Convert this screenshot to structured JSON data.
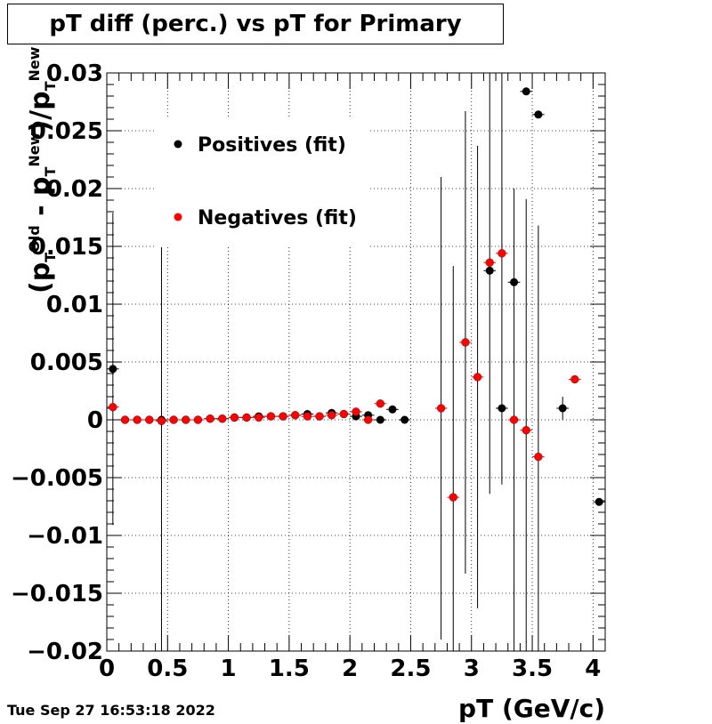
{
  "title": "pT diff (perc.) vs pT for Primary",
  "timestamp": "Tue Sep 27 16:53:18 2022",
  "chart_data": {
    "type": "scatter",
    "title": "pT diff (perc.) vs pT for Primary",
    "xlabel": "pT (GeV/c)",
    "ylabel": "(pT Old - pT New)/pT New",
    "ylabel_parts": {
      "open": "(p",
      "old_sup": "Old",
      "t1": "T",
      "minus": " - p",
      "new_sup1": "New",
      "t2": "T",
      "close": ")/p",
      "new_sup2": "New",
      "t3": "T"
    },
    "xlim": [
      0,
      4.1
    ],
    "ylim": [
      -0.02,
      0.03
    ],
    "xticks": [
      0,
      0.5,
      1,
      1.5,
      2,
      2.5,
      3,
      3.5,
      4
    ],
    "xtick_labels": [
      "0",
      "0.5",
      "1",
      "1.5",
      "2",
      "2.5",
      "3",
      "3.5",
      "4"
    ],
    "yticks": [
      -0.02,
      -0.015,
      -0.01,
      -0.005,
      0,
      0.005,
      0.01,
      0.015,
      0.02,
      0.025,
      0.03
    ],
    "ytick_labels": [
      "−0.02",
      "−0.015",
      "−0.01",
      "−0.005",
      "0",
      "0.005",
      "0.01",
      "0.015",
      "0.02",
      "0.025",
      "0.03"
    ],
    "grid": true,
    "legend_position": "top-left inside",
    "series": [
      {
        "name": "Positives (fit)",
        "color": "#000000",
        "points": [
          {
            "x": 0.05,
            "y": 0.0044,
            "yerr": 0.0135
          },
          {
            "x": 0.15,
            "y": 0.0,
            "yerr": 0
          },
          {
            "x": 0.25,
            "y": 0.0,
            "yerr": 0
          },
          {
            "x": 0.35,
            "y": 0.0,
            "yerr": 0
          },
          {
            "x": 0.45,
            "y": 0.0,
            "yerr": 0.02
          },
          {
            "x": 0.55,
            "y": 0.0,
            "yerr": 0
          },
          {
            "x": 0.65,
            "y": 0.0,
            "yerr": 0
          },
          {
            "x": 0.75,
            "y": 0.0,
            "yerr": 0
          },
          {
            "x": 0.85,
            "y": 0.0001,
            "yerr": 0
          },
          {
            "x": 0.95,
            "y": 0.0001,
            "yerr": 0
          },
          {
            "x": 1.05,
            "y": 0.0002,
            "yerr": 0
          },
          {
            "x": 1.15,
            "y": 0.0002,
            "yerr": 0
          },
          {
            "x": 1.25,
            "y": 0.0003,
            "yerr": 0
          },
          {
            "x": 1.35,
            "y": 0.0003,
            "yerr": 0
          },
          {
            "x": 1.45,
            "y": 0.0003,
            "yerr": 0
          },
          {
            "x": 1.55,
            "y": 0.0004,
            "yerr": 0
          },
          {
            "x": 1.65,
            "y": 0.0005,
            "yerr": 0
          },
          {
            "x": 1.75,
            "y": 0.0003,
            "yerr": 0
          },
          {
            "x": 1.85,
            "y": 0.0006,
            "yerr": 0
          },
          {
            "x": 1.95,
            "y": 0.0005,
            "yerr": 0
          },
          {
            "x": 2.05,
            "y": 0.0003,
            "yerr": 0
          },
          {
            "x": 2.15,
            "y": 0.0004,
            "yerr": 0
          },
          {
            "x": 2.25,
            "y": 0.0,
            "yerr": 0
          },
          {
            "x": 2.35,
            "y": 0.0009,
            "yerr": 0
          },
          {
            "x": 2.45,
            "y": 0.0,
            "yerr": 0
          },
          {
            "x": 3.15,
            "y": 0.0129,
            "yerr": 0
          },
          {
            "x": 3.25,
            "y": 0.001,
            "yerr": 0
          },
          {
            "x": 3.35,
            "y": 0.0119,
            "yerr": 0
          },
          {
            "x": 3.45,
            "y": 0.0284,
            "yerr": 0
          },
          {
            "x": 3.55,
            "y": 0.0264,
            "yerr": 0
          },
          {
            "x": 3.75,
            "y": 0.001,
            "yerr": 0.001
          },
          {
            "x": 4.05,
            "y": -0.0071,
            "yerr": 0
          }
        ]
      },
      {
        "name": "Negatives (fit)",
        "color": "#ff0000",
        "points": [
          {
            "x": 0.05,
            "y": 0.0011,
            "yerr": 0
          },
          {
            "x": 0.15,
            "y": 0.0,
            "yerr": 0
          },
          {
            "x": 0.25,
            "y": 0.0,
            "yerr": 0
          },
          {
            "x": 0.35,
            "y": 0.0,
            "yerr": 0
          },
          {
            "x": 0.45,
            "y": -0.0001,
            "yerr": 0
          },
          {
            "x": 0.55,
            "y": 0.0,
            "yerr": 0
          },
          {
            "x": 0.65,
            "y": 0.0,
            "yerr": 0
          },
          {
            "x": 0.75,
            "y": 0.0,
            "yerr": 0
          },
          {
            "x": 0.85,
            "y": 0.0001,
            "yerr": 0
          },
          {
            "x": 0.95,
            "y": 0.0001,
            "yerr": 0
          },
          {
            "x": 1.05,
            "y": 0.0002,
            "yerr": 0
          },
          {
            "x": 1.15,
            "y": 0.0002,
            "yerr": 0
          },
          {
            "x": 1.25,
            "y": 0.0002,
            "yerr": 0
          },
          {
            "x": 1.35,
            "y": 0.0003,
            "yerr": 0
          },
          {
            "x": 1.45,
            "y": 0.0003,
            "yerr": 0
          },
          {
            "x": 1.55,
            "y": 0.0004,
            "yerr": 0
          },
          {
            "x": 1.65,
            "y": 0.0003,
            "yerr": 0
          },
          {
            "x": 1.75,
            "y": 0.0003,
            "yerr": 0
          },
          {
            "x": 1.85,
            "y": 0.0004,
            "yerr": 0
          },
          {
            "x": 1.95,
            "y": 0.0005,
            "yerr": 0
          },
          {
            "x": 2.05,
            "y": 0.0007,
            "yerr": 0
          },
          {
            "x": 2.15,
            "y": 0.0,
            "yerr": 0
          },
          {
            "x": 2.25,
            "y": 0.0014,
            "yerr": 0
          },
          {
            "x": 2.75,
            "y": 0.001,
            "yerr": 0.02
          },
          {
            "x": 2.85,
            "y": -0.0067,
            "yerr": 0.02
          },
          {
            "x": 2.95,
            "y": 0.0067,
            "yerr": 0.02
          },
          {
            "x": 3.05,
            "y": 0.0037,
            "yerr": 0.02
          },
          {
            "x": 3.15,
            "y": 0.0136,
            "yerr": 0.02
          },
          {
            "x": 3.25,
            "y": 0.0144,
            "yerr": 0.02
          },
          {
            "x": 3.35,
            "y": 0.0,
            "yerr": 0.02
          },
          {
            "x": 3.45,
            "y": -0.0009,
            "yerr": 0.02
          },
          {
            "x": 3.55,
            "y": -0.0032,
            "yerr": 0.02
          },
          {
            "x": 3.85,
            "y": 0.0035,
            "yerr": 0
          }
        ]
      }
    ]
  }
}
